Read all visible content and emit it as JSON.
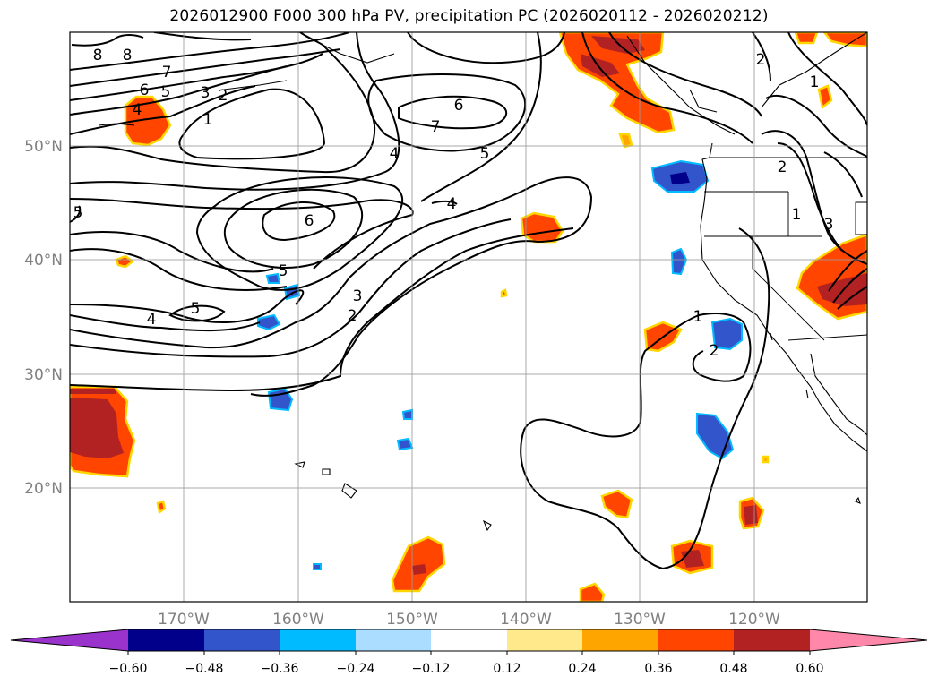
{
  "title": "2026012900 F000 300 hPa PV, precipitation PC (2026020112 - 2026020212)",
  "map": {
    "lat_labels": [
      "50°N",
      "40°N",
      "30°N",
      "20°N"
    ],
    "lon_labels": [
      "170°W",
      "160°W",
      "150°W",
      "140°W",
      "130°W",
      "120°W"
    ],
    "contour_labels": [
      "8",
      "8",
      "7",
      "6",
      "5",
      "3",
      "2",
      "1",
      "4",
      "6",
      "7",
      "4",
      "5",
      "2",
      "1",
      "2",
      "1",
      "3",
      "5",
      "6",
      "4",
      "5",
      "5",
      "4",
      "3",
      "2",
      "1",
      "2"
    ]
  },
  "colorbar": {
    "ticks": [
      "−0.60",
      "−0.48",
      "−0.36",
      "−0.24",
      "−0.12",
      "0.12",
      "0.24",
      "0.36",
      "0.48",
      "0.60"
    ],
    "colors": [
      "#9933cc",
      "#00008b",
      "#3355cc",
      "#00bbff",
      "#aaddff",
      "#ffffff",
      "#ffe98a",
      "#ffa500",
      "#ff4500",
      "#b22222",
      "#ff88aa"
    ]
  }
}
